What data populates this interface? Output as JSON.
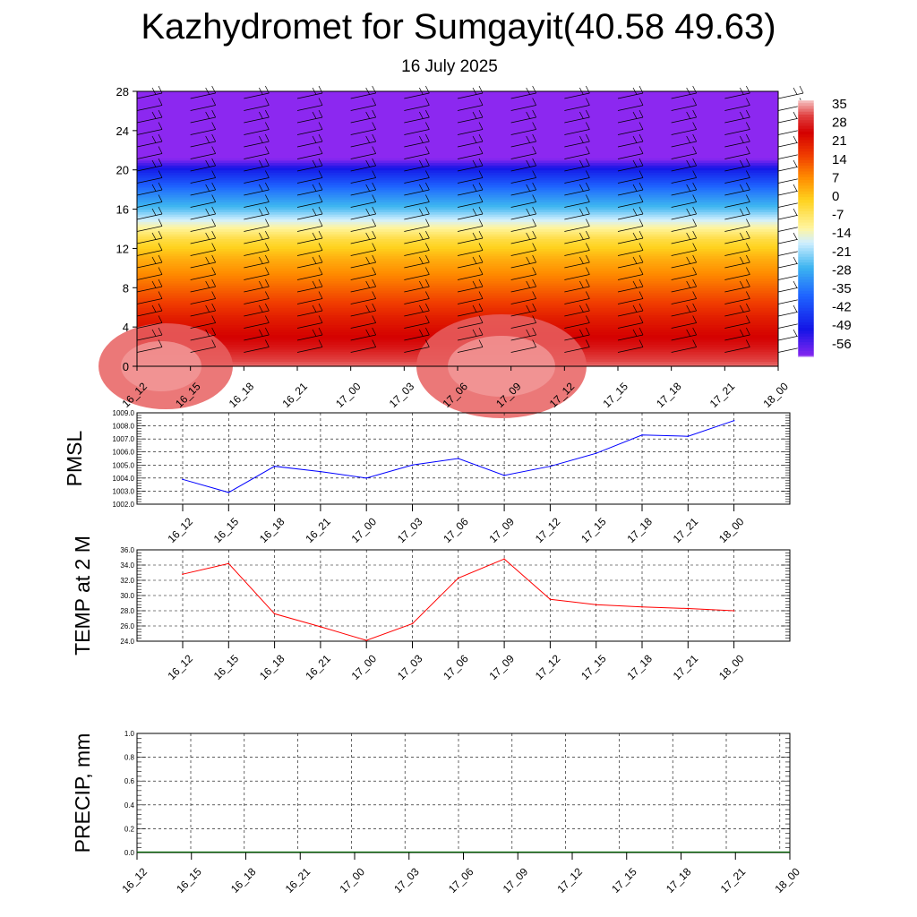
{
  "header": {
    "title": "Kazhydromet for Sumgayit(40.58 49.63)",
    "subtitle": "16 July 2025"
  },
  "colors": {
    "pmsl_line": "#0000ff",
    "temp_line": "#ff0000",
    "precip_line": "#006400",
    "grid": "#000000"
  },
  "time_labels": [
    "16_12",
    "16_15",
    "16_18",
    "16_21",
    "17_00",
    "17_03",
    "17_06",
    "17_09",
    "17_12",
    "17_15",
    "17_18",
    "17_21",
    "18_00"
  ],
  "chart_data": [
    {
      "id": "cross_section",
      "type": "heatmap",
      "title": "",
      "ylim": [
        0,
        28
      ],
      "y_ticks": [
        "0",
        "4",
        "8",
        "12",
        "16",
        "20",
        "24",
        "28"
      ],
      "colorbar": {
        "labels": [
          "35",
          "28",
          "21",
          "14",
          "7",
          "0",
          "-7",
          "-14",
          "-21",
          "-28",
          "-35",
          "-42",
          "-49",
          "-56"
        ],
        "stops": [
          {
            "v": 35,
            "color": "#f4b8b8"
          },
          {
            "v": 30,
            "color": "#e04040"
          },
          {
            "v": 24,
            "color": "#d40000"
          },
          {
            "v": 16,
            "color": "#f03c00"
          },
          {
            "v": 8,
            "color": "#ff8c00"
          },
          {
            "v": 0,
            "color": "#ffd21e"
          },
          {
            "v": -10,
            "color": "#fff5a0"
          },
          {
            "v": -15,
            "color": "#d2f0ff"
          },
          {
            "v": -24,
            "color": "#3cb4f0"
          },
          {
            "v": -34,
            "color": "#1e64ff"
          },
          {
            "v": -46,
            "color": "#1414e6"
          },
          {
            "v": -56,
            "color": "#8c28f0"
          }
        ]
      },
      "level_temps": [
        {
          "h": 0,
          "t": 32
        },
        {
          "h": 2,
          "t": 26
        },
        {
          "h": 5,
          "t": 20
        },
        {
          "h": 8,
          "t": 12
        },
        {
          "h": 11,
          "t": 4
        },
        {
          "h": 13,
          "t": -3
        },
        {
          "h": 14.5,
          "t": -12
        },
        {
          "h": 16,
          "t": -22
        },
        {
          "h": 18,
          "t": -32
        },
        {
          "h": 20,
          "t": -44
        },
        {
          "h": 21.2,
          "t": -56
        },
        {
          "h": 22.5,
          "t": -56
        },
        {
          "h": 28,
          "t": -56
        }
      ]
    },
    {
      "id": "pmsl",
      "type": "line",
      "ylabel": "PMSL",
      "ylim": [
        1002.0,
        1009.0
      ],
      "y_ticks": [
        "1002.0",
        "1003.0",
        "1004.0",
        "1005.0",
        "1006.0",
        "1007.0",
        "1008.0",
        "1009.0"
      ],
      "x": [
        "16_12",
        "16_15",
        "16_18",
        "16_21",
        "17_00",
        "17_03",
        "17_06",
        "17_09",
        "17_12",
        "17_15",
        "17_18",
        "17_21",
        "18_00"
      ],
      "series": [
        {
          "values": [
            1003.9,
            1002.9,
            1004.9,
            1004.5,
            1004.0,
            1005.0,
            1005.5,
            1004.2,
            1004.9,
            1005.9,
            1007.3,
            1007.2,
            1008.4
          ]
        }
      ]
    },
    {
      "id": "temp",
      "type": "line",
      "ylabel": "TEMP at 2 M",
      "ylim": [
        24.0,
        36.0
      ],
      "y_ticks": [
        "24.0",
        "26.0",
        "28.0",
        "30.0",
        "32.0",
        "34.0",
        "36.0"
      ],
      "x": [
        "16_12",
        "16_15",
        "16_18",
        "16_21",
        "17_00",
        "17_03",
        "17_06",
        "17_09",
        "17_12",
        "17_15",
        "17_18",
        "17_21",
        "18_00"
      ],
      "series": [
        {
          "values": [
            32.8,
            34.2,
            27.6,
            25.9,
            24.1,
            26.3,
            32.3,
            34.8,
            29.5,
            28.8,
            28.5,
            28.3,
            28.0
          ]
        }
      ]
    },
    {
      "id": "precip",
      "type": "line",
      "ylabel": "PRECIP, mm",
      "ylim": [
        0.0,
        1.0
      ],
      "y_ticks": [
        "0.0",
        "0.2",
        "0.4",
        "0.6",
        "0.8",
        "1.0"
      ],
      "x": [
        "16_12",
        "16_15",
        "16_18",
        "16_21",
        "17_00",
        "17_03",
        "17_06",
        "17_09",
        "17_12",
        "17_15",
        "17_18",
        "17_21",
        "18_00"
      ],
      "series": [
        {
          "values": [
            0,
            0,
            0,
            0,
            0,
            0,
            0,
            0,
            0,
            0,
            0,
            0,
            0
          ]
        }
      ]
    }
  ]
}
